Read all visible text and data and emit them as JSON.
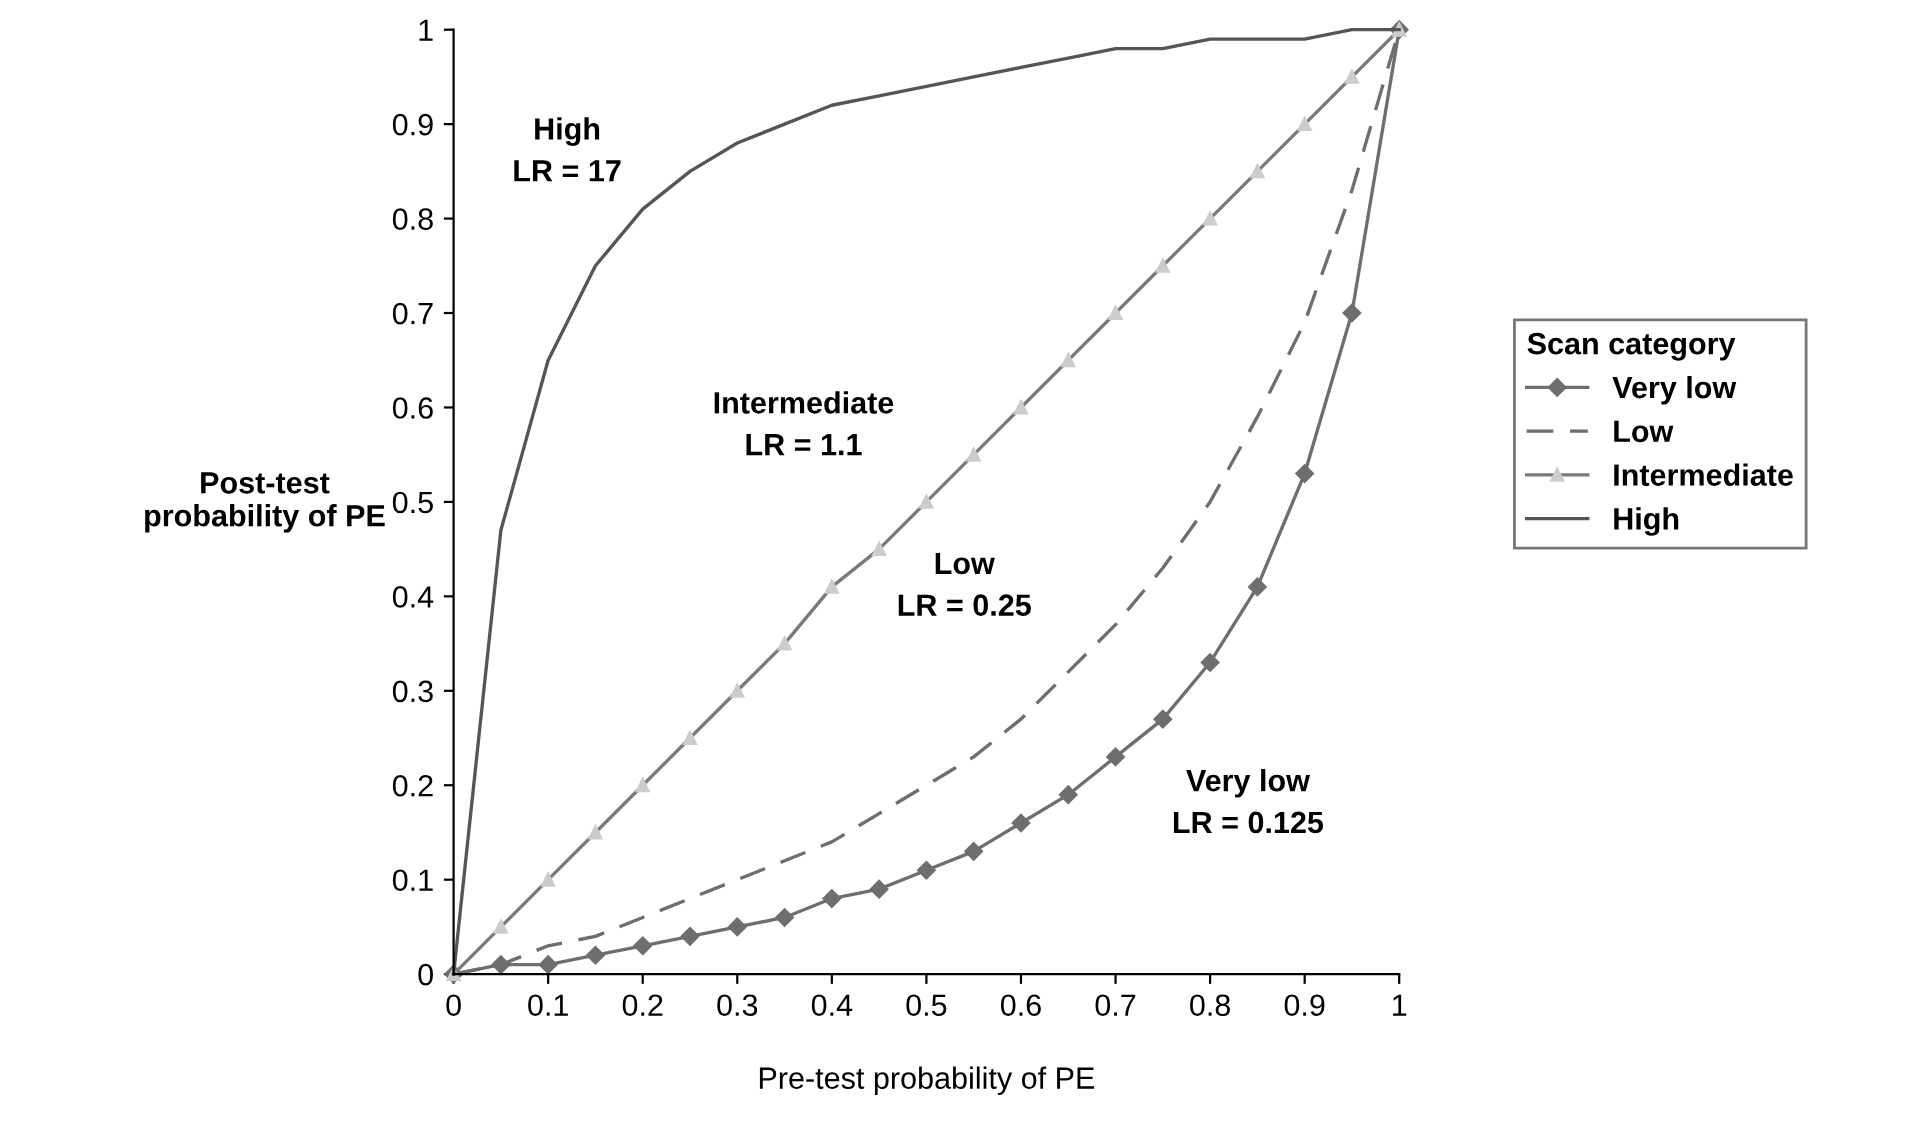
{
  "chart_data": {
    "type": "line",
    "xlabel": "Pre-test probability of PE",
    "ylabel": "Post-test\nprobability of PE",
    "legend_title": "Scan category",
    "legend": "right",
    "grid": false,
    "x": [
      0,
      0.05,
      0.1,
      0.15,
      0.2,
      0.25,
      0.3,
      0.35,
      0.4,
      0.45,
      0.5,
      0.55,
      0.6,
      0.65,
      0.7,
      0.75,
      0.8,
      0.85,
      0.9,
      0.95,
      1
    ],
    "xlim": [
      0,
      1
    ],
    "ylim": [
      0,
      1
    ],
    "xticks": [
      0,
      0.1,
      0.2,
      0.3,
      0.4,
      0.5,
      0.6,
      0.7,
      0.8,
      0.9,
      1
    ],
    "yticks": [
      0,
      0.1,
      0.2,
      0.3,
      0.4,
      0.5,
      0.6,
      0.7,
      0.8,
      0.9,
      1
    ],
    "series": [
      {
        "name": "Very low",
        "color": "#6e6e6e",
        "marker": "diamond",
        "line_style": "solid",
        "values": [
          0,
          0.01,
          0.01,
          0.02,
          0.03,
          0.04,
          0.05,
          0.06,
          0.08,
          0.09,
          0.11,
          0.13,
          0.16,
          0.19,
          0.23,
          0.27,
          0.33,
          0.41,
          0.53,
          0.7,
          1
        ]
      },
      {
        "name": "Low",
        "color": "#6e6e6e",
        "marker": "none",
        "line_style": "dashed",
        "values": [
          0,
          0.01,
          0.03,
          0.04,
          0.06,
          0.08,
          0.1,
          0.12,
          0.14,
          0.17,
          0.2,
          0.23,
          0.27,
          0.32,
          0.37,
          0.43,
          0.5,
          0.59,
          0.69,
          0.83,
          1
        ]
      },
      {
        "name": "Intermediate",
        "color": "#7a7a7a",
        "marker": "triangle",
        "line_style": "solid",
        "values": [
          0,
          0.05,
          0.1,
          0.15,
          0.2,
          0.25,
          0.3,
          0.35,
          0.41,
          0.45,
          0.5,
          0.55,
          0.6,
          0.65,
          0.7,
          0.75,
          0.8,
          0.85,
          0.9,
          0.95,
          1
        ]
      },
      {
        "name": "High",
        "color": "#555555",
        "marker": "none",
        "line_style": "solid",
        "values": [
          0,
          0.47,
          0.65,
          0.75,
          0.81,
          0.85,
          0.88,
          0.9,
          0.92,
          0.93,
          0.94,
          0.95,
          0.96,
          0.97,
          0.98,
          0.98,
          0.99,
          0.99,
          0.99,
          1.0,
          1
        ]
      }
    ],
    "annotations": [
      "High\nLR = 17",
      "Intermediate\nLR = 1.1",
      "Low\nLR = 0.25",
      "Very low\nLR = 0.125"
    ]
  }
}
